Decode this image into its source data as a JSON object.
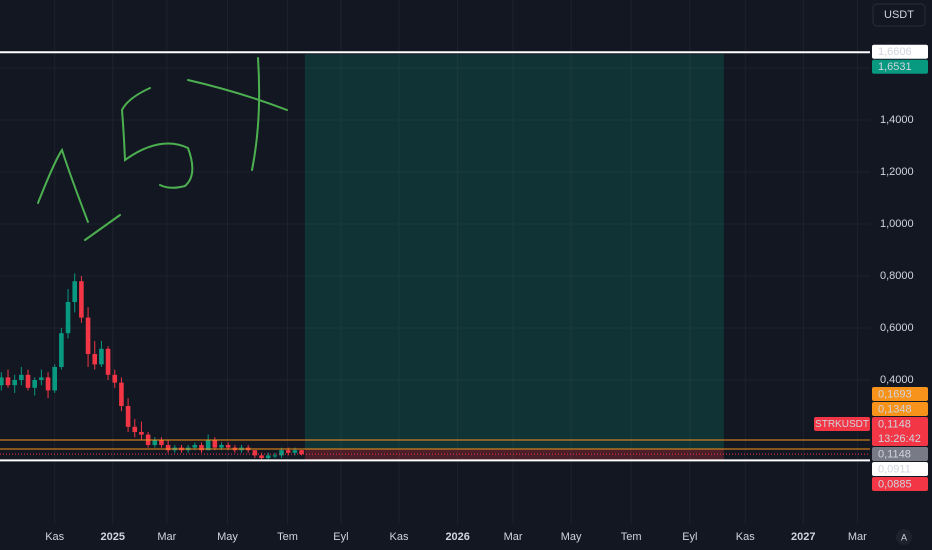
{
  "chart_data": {
    "type": "candlestick",
    "currency": "USDT",
    "auto_button": "A",
    "up_color": "#089981",
    "down_color": "#f23645",
    "grid": true,
    "x": [
      -8,
      -7,
      -6,
      -5,
      -4,
      -3,
      -2,
      -1,
      0,
      1,
      2,
      3,
      4,
      5,
      6,
      7,
      8,
      9,
      10,
      11,
      12,
      13,
      14,
      15,
      16,
      17,
      18,
      19,
      20,
      21,
      22,
      23,
      24,
      25,
      26,
      27,
      28,
      29,
      30,
      31,
      32,
      33,
      34,
      35,
      36,
      37
    ],
    "open": [
      0.38,
      0.41,
      0.38,
      0.4,
      0.42,
      0.37,
      0.4,
      0.41,
      0.36,
      0.45,
      0.58,
      0.7,
      0.78,
      0.64,
      0.5,
      0.46,
      0.52,
      0.42,
      0.39,
      0.3,
      0.22,
      0.2,
      0.19,
      0.15,
      0.17,
      0.15,
      0.13,
      0.14,
      0.13,
      0.14,
      0.15,
      0.13,
      0.17,
      0.14,
      0.15,
      0.14,
      0.13,
      0.14,
      0.13,
      0.11,
      0.1,
      0.11,
      0.11,
      0.13,
      0.12,
      0.13
    ],
    "high": [
      0.43,
      0.44,
      0.42,
      0.45,
      0.44,
      0.41,
      0.44,
      0.43,
      0.46,
      0.6,
      0.75,
      0.81,
      0.8,
      0.68,
      0.55,
      0.55,
      0.53,
      0.44,
      0.41,
      0.33,
      0.25,
      0.24,
      0.2,
      0.18,
      0.18,
      0.17,
      0.15,
      0.15,
      0.15,
      0.16,
      0.16,
      0.19,
      0.18,
      0.16,
      0.16,
      0.15,
      0.15,
      0.15,
      0.13,
      0.12,
      0.12,
      0.12,
      0.14,
      0.14,
      0.14,
      0.13
    ],
    "low": [
      0.36,
      0.37,
      0.35,
      0.38,
      0.36,
      0.34,
      0.38,
      0.33,
      0.35,
      0.44,
      0.56,
      0.66,
      0.62,
      0.45,
      0.44,
      0.45,
      0.4,
      0.37,
      0.28,
      0.2,
      0.18,
      0.17,
      0.14,
      0.14,
      0.14,
      0.12,
      0.12,
      0.12,
      0.12,
      0.13,
      0.12,
      0.13,
      0.13,
      0.13,
      0.13,
      0.12,
      0.12,
      0.12,
      0.1,
      0.09,
      0.09,
      0.1,
      0.1,
      0.11,
      0.11,
      0.11
    ],
    "close": [
      0.41,
      0.38,
      0.4,
      0.42,
      0.37,
      0.4,
      0.41,
      0.36,
      0.45,
      0.58,
      0.7,
      0.78,
      0.64,
      0.5,
      0.46,
      0.52,
      0.42,
      0.39,
      0.3,
      0.22,
      0.2,
      0.19,
      0.15,
      0.17,
      0.15,
      0.13,
      0.14,
      0.13,
      0.14,
      0.15,
      0.13,
      0.17,
      0.14,
      0.15,
      0.14,
      0.13,
      0.14,
      0.13,
      0.11,
      0.1,
      0.11,
      0.11,
      0.13,
      0.12,
      0.13,
      0.1148
    ],
    "xlim": [
      -8.2,
      122.2
    ],
    "xticks": [
      {
        "value": 0,
        "label": "Kas"
      },
      {
        "value": 8.7,
        "label": "2025"
      },
      {
        "value": 16.8,
        "label": "Mar"
      },
      {
        "value": 25.9,
        "label": "May"
      },
      {
        "value": 34.9,
        "label": "Tem"
      },
      {
        "value": 42.9,
        "label": "Eyl"
      },
      {
        "value": 51.6,
        "label": "Kas"
      },
      {
        "value": 60.4,
        "label": "2026"
      },
      {
        "value": 68.7,
        "label": "Mar"
      },
      {
        "value": 77.4,
        "label": "May"
      },
      {
        "value": 86.4,
        "label": "Tem"
      },
      {
        "value": 95.2,
        "label": "Eyl"
      },
      {
        "value": 103.5,
        "label": "Kas"
      },
      {
        "value": 112.2,
        "label": "2027"
      },
      {
        "value": 120.3,
        "label": "Mar"
      }
    ],
    "ylim": [
      -0.1538,
      1.8615
    ],
    "yticks": [
      {
        "value": 0.4,
        "label": "0,4000"
      },
      {
        "value": 0.6,
        "label": "0,6000"
      },
      {
        "value": 0.8,
        "label": "0,8000"
      },
      {
        "value": 1.0,
        "label": "1,0000"
      },
      {
        "value": 1.2,
        "label": "1,2000"
      },
      {
        "value": 1.4,
        "label": "1,4000"
      },
      {
        "value": 1.6,
        "label": "1,6000"
      }
    ],
    "position": {
      "x_range": [
        37.5,
        100.3
      ],
      "entry": 0.1348,
      "target": 1.6531,
      "stop": 0.0885,
      "profit_color": "rgba(8,153,129,0.22)",
      "loss_color": "rgba(242,54,69,0.25)"
    },
    "price_labels": [
      {
        "value": 1.6606,
        "label": "1,6606",
        "color": "#ffffff",
        "text_color": "#131722",
        "line": "solid"
      },
      {
        "value": 1.6531,
        "label": "1,6531",
        "color": "#089981",
        "text_color": "#ffffff",
        "line": "none"
      },
      {
        "value": 0.1693,
        "label": "0,1693",
        "color": "#f7931a",
        "text_color": "#131722",
        "line": "solid"
      },
      {
        "value": 0.1348,
        "label": "0,1348",
        "color": "#f7931a",
        "text_color": "#131722",
        "line": "solid"
      },
      {
        "value": 0.1148,
        "label": "0,1148",
        "color": "#f23645",
        "text_color": "#ffffff",
        "line": "dotted",
        "symbol": "STRKUSDT",
        "countdown": "13:26:42"
      },
      {
        "value": 0.1148,
        "label": "0,1148",
        "color": "#787b86",
        "text_color": "#ffffff",
        "line": "none"
      },
      {
        "value": 0.0911,
        "label": "0,0911",
        "color": "#ffffff",
        "text_color": "#131722",
        "line": "solid"
      },
      {
        "value": 0.0885,
        "label": "0,0885",
        "color": "#f23645",
        "text_color": "#ffffff",
        "line": "none"
      }
    ]
  }
}
